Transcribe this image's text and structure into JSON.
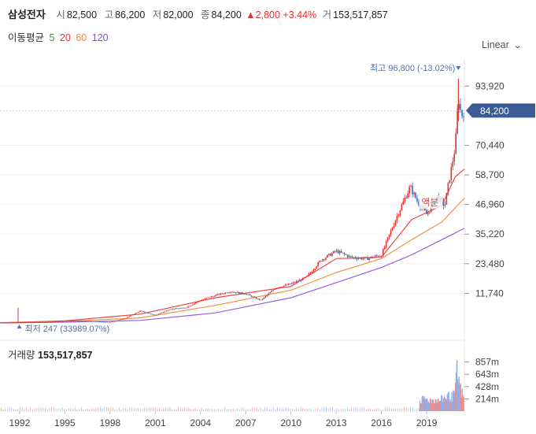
{
  "header": {
    "name": "삼성전자",
    "open_label": "시",
    "open": "82,500",
    "high_label": "고",
    "high": "86,200",
    "low_label": "저",
    "low": "82,000",
    "close_label": "종",
    "close": "84,200",
    "change": "2,800",
    "change_pct": "+3.44%",
    "volume_label": "거",
    "volume": "153,517,857"
  },
  "moving_average": {
    "label": "이동평균",
    "periods": [
      {
        "value": "5",
        "color": "#2e9e3a"
      },
      {
        "value": "20",
        "color": "#e5312f"
      },
      {
        "value": "60",
        "color": "#f0883b"
      },
      {
        "value": "120",
        "color": "#8a4fd8"
      }
    ]
  },
  "scale_toggle": {
    "label": "Linear",
    "icon": "chevron-down-icon"
  },
  "volume_panel": {
    "label": "거래량",
    "value": "153,517,857"
  },
  "colors": {
    "up": "#e5312f",
    "down": "#2f6fd6",
    "badge": "#3b5b94",
    "annotation": "#5670a8"
  },
  "chart_data": {
    "type": "candlestick",
    "y_scale": "linear",
    "y_ticks": [
      11740,
      23480,
      35220,
      46960,
      58700,
      70440,
      93920
    ],
    "y_tick_labels": [
      "11,740",
      "23,480",
      "35,220",
      "46,960",
      "58,700",
      "70,440",
      "93,920"
    ],
    "ylim": [
      0,
      101500
    ],
    "x_ticks": [
      1992,
      1995,
      1998,
      2001,
      2004,
      2007,
      2010,
      2013,
      2016,
      2019
    ],
    "xlim": [
      1990.7,
      2021.5
    ],
    "current_price": {
      "value": 84200,
      "label": "84,200"
    },
    "high_annotation": {
      "label": "최고",
      "text": "96,800 (-13.02%)",
      "value": 96800,
      "x": 2021.1
    },
    "low_annotation": {
      "label": "최저",
      "text": "247 (33989.07%)",
      "value": 247,
      "x": 1991.3
    },
    "overlay_text": "액분",
    "price_path": [
      [
        1990.7,
        100
      ],
      [
        1992,
        160
      ],
      [
        1993,
        240
      ],
      [
        1994,
        450
      ],
      [
        1995,
        950
      ],
      [
        1996,
        900
      ],
      [
        1997,
        600
      ],
      [
        1998,
        300
      ],
      [
        1999,
        1800
      ],
      [
        2000,
        4800
      ],
      [
        2001,
        3000
      ],
      [
        2002,
        5500
      ],
      [
        2003,
        6000
      ],
      [
        2004,
        9000
      ],
      [
        2005,
        11000
      ],
      [
        2006,
        12500
      ],
      [
        2007,
        11500
      ],
      [
        2008,
        9000
      ],
      [
        2009,
        14000
      ],
      [
        2010,
        15500
      ],
      [
        2011,
        18000
      ],
      [
        2012,
        25000
      ],
      [
        2013,
        28500
      ],
      [
        2014,
        26000
      ],
      [
        2015,
        25500
      ],
      [
        2016,
        27000
      ],
      [
        2017,
        42000
      ],
      [
        2017.9,
        54000
      ],
      [
        2018.4,
        48000
      ],
      [
        2019,
        43000
      ],
      [
        2019.7,
        50000
      ],
      [
        2020.2,
        46500
      ],
      [
        2020.5,
        57000
      ],
      [
        2020.9,
        70000
      ],
      [
        2021.1,
        90000
      ],
      [
        2021.3,
        82000
      ],
      [
        2021.5,
        84200
      ]
    ],
    "moving_averages": [
      {
        "period": "20",
        "points": [
          [
            1990.7,
            80
          ],
          [
            1995,
            800
          ],
          [
            2000,
            3500
          ],
          [
            2005,
            10000
          ],
          [
            2010,
            14500
          ],
          [
            2013,
            25500
          ],
          [
            2016,
            26000
          ],
          [
            2018,
            41000
          ],
          [
            2020,
            46500
          ],
          [
            2020.9,
            58000
          ],
          [
            2021.5,
            61000
          ]
        ]
      },
      {
        "period": "60",
        "points": [
          [
            1990.7,
            60
          ],
          [
            1995,
            600
          ],
          [
            2000,
            2000
          ],
          [
            2005,
            7000
          ],
          [
            2010,
            13000
          ],
          [
            2013,
            20000
          ],
          [
            2016,
            25500
          ],
          [
            2018,
            33000
          ],
          [
            2020,
            40000
          ],
          [
            2021.5,
            49500
          ]
        ]
      },
      {
        "period": "120",
        "points": [
          [
            1990.7,
            40
          ],
          [
            1995,
            300
          ],
          [
            2000,
            1000
          ],
          [
            2005,
            4000
          ],
          [
            2010,
            10000
          ],
          [
            2013,
            16000
          ],
          [
            2016,
            22000
          ],
          [
            2018,
            27000
          ],
          [
            2020,
            33000
          ],
          [
            2021.5,
            37500
          ]
        ]
      }
    ],
    "volume": {
      "y_ticks": [
        214000000,
        428000000,
        643000000,
        857000000
      ],
      "y_tick_labels": [
        "214m",
        "428m",
        "643m",
        "857m"
      ],
      "ylim": [
        0,
        920000000
      ],
      "bars_by_year": [
        [
          2018.6,
          230000000
        ],
        [
          2018.9,
          260000000
        ],
        [
          2019.2,
          240000000
        ],
        [
          2019.5,
          250000000
        ],
        [
          2019.8,
          220000000
        ],
        [
          2020.1,
          280000000
        ],
        [
          2020.4,
          330000000
        ],
        [
          2020.7,
          300000000
        ],
        [
          2020.9,
          420000000
        ],
        [
          2021.0,
          850000000
        ],
        [
          2021.15,
          600000000
        ],
        [
          2021.3,
          420000000
        ],
        [
          2021.45,
          300000000
        ]
      ]
    }
  }
}
